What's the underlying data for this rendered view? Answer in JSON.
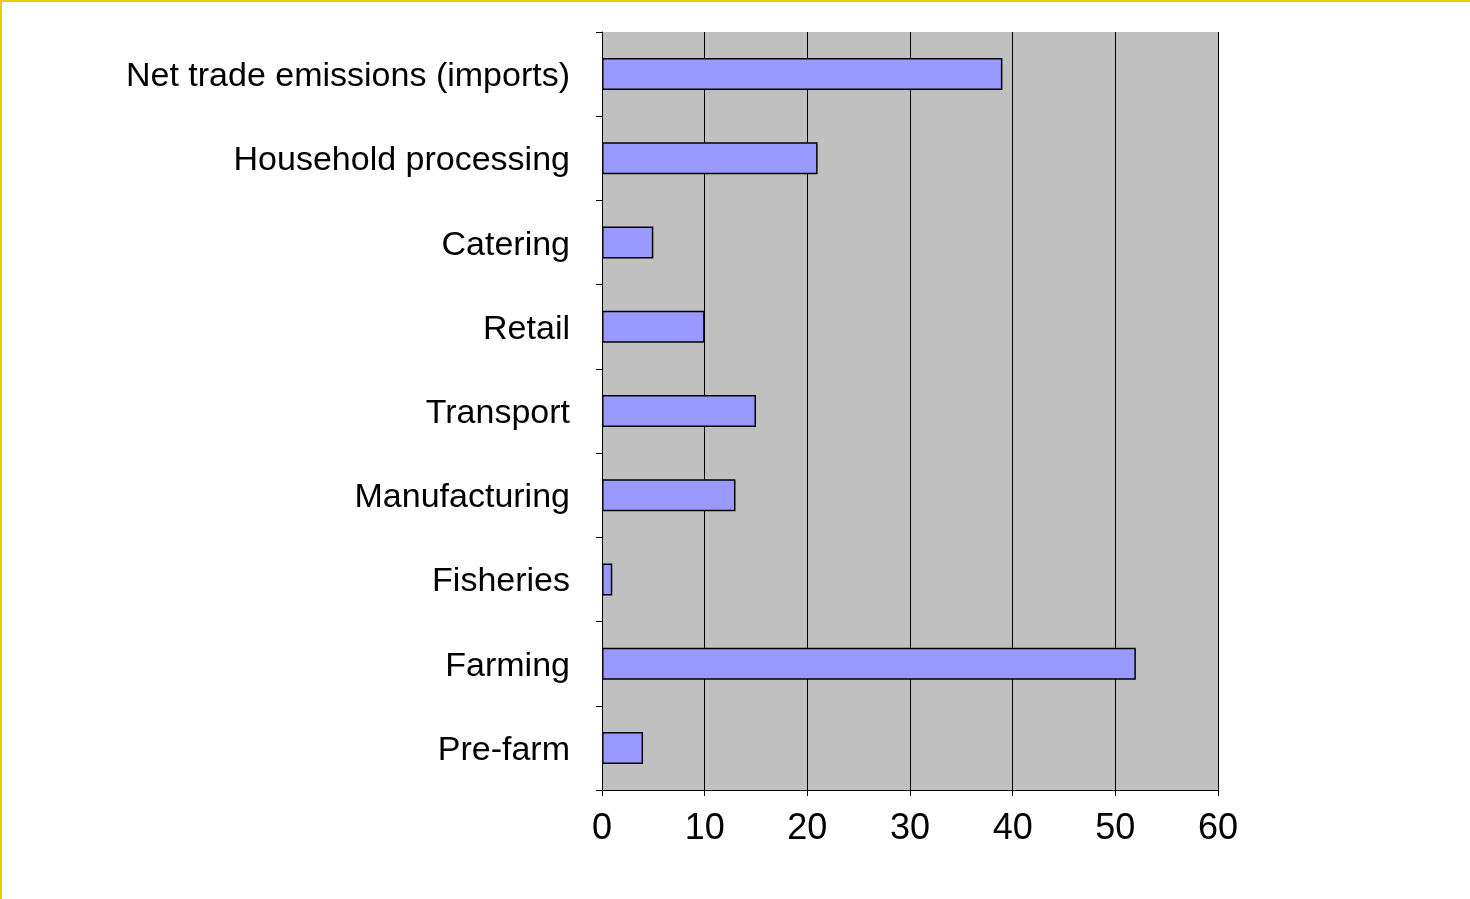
{
  "chart_data": {
    "type": "bar",
    "orientation": "horizontal",
    "categories": [
      "Net trade emissions (imports)",
      "Household processing",
      "Catering",
      "Retail",
      "Transport",
      "Manufacturing",
      "Fisheries",
      "Farming",
      "Pre-farm"
    ],
    "values": [
      39,
      21,
      5,
      10,
      15,
      13,
      1,
      52,
      4
    ],
    "color": "#9999ff",
    "xlim": [
      0,
      60
    ],
    "xticks": [
      0,
      10,
      20,
      30,
      40,
      50,
      60
    ],
    "grid": "x"
  }
}
